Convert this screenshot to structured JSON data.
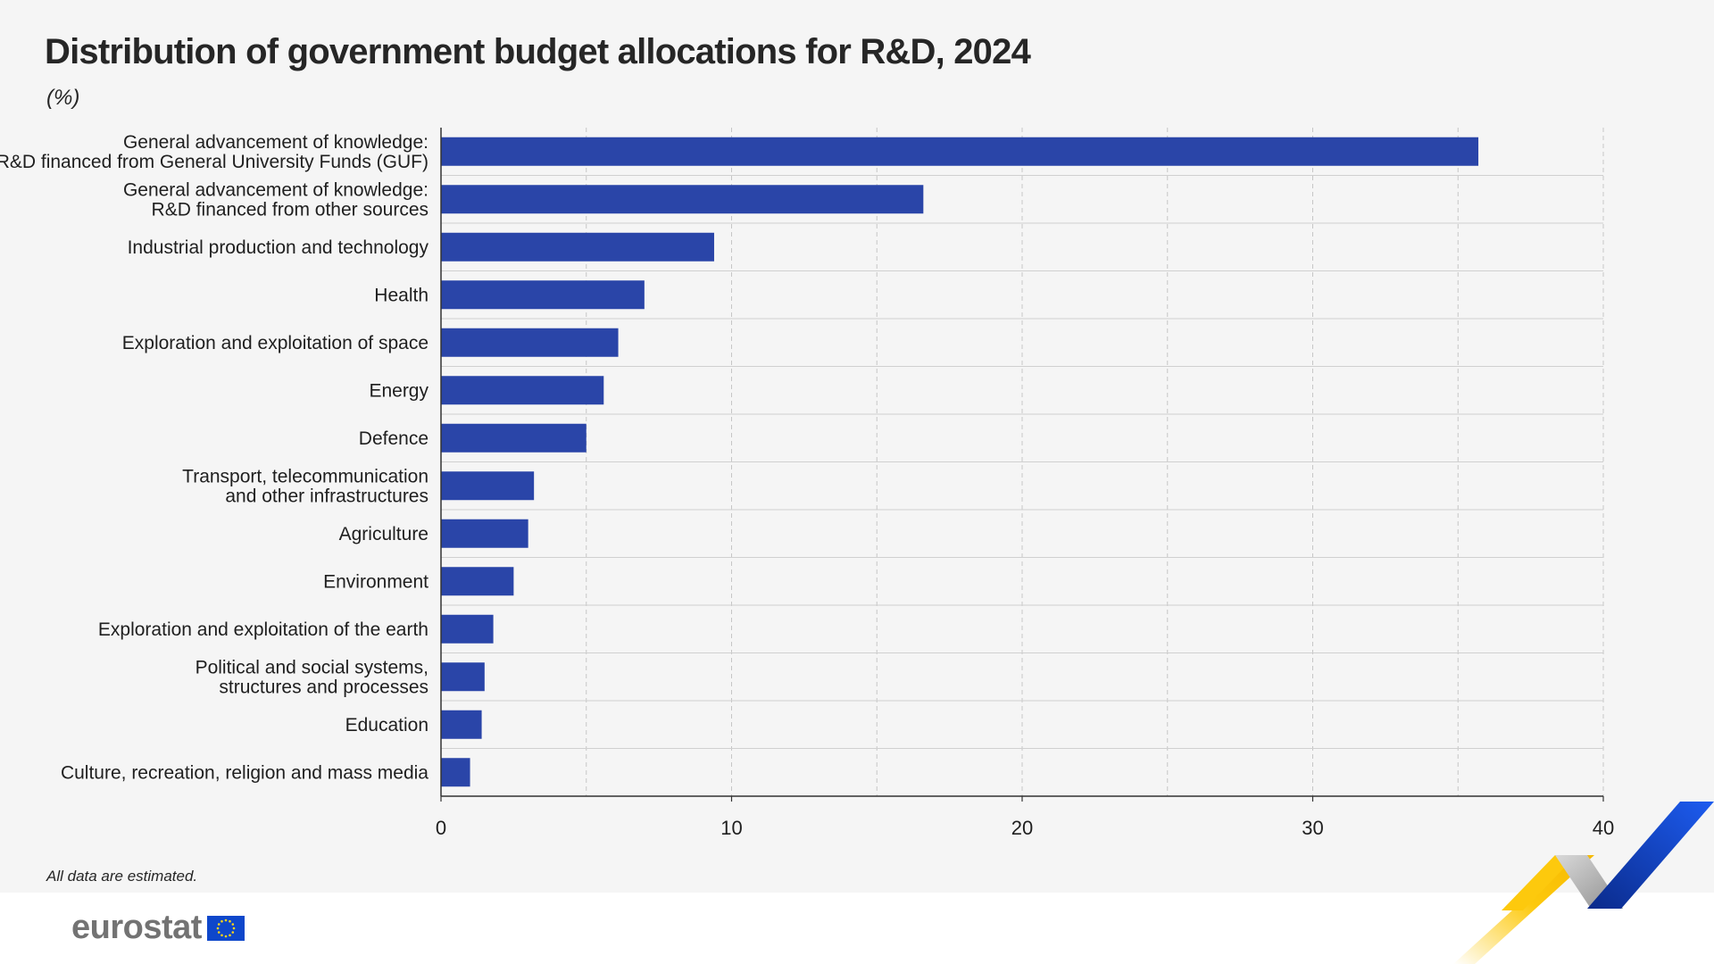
{
  "header": {
    "title": "Distribution of government budget allocations for R&D, 2024",
    "subtitle": "(%)"
  },
  "note": "All data are estimated.",
  "brand": {
    "name": "eurostat",
    "colors": {
      "bar": "#2a45a8",
      "flag": "#0e47cb",
      "flag_stars": "#ffd617",
      "yellow": "#fdc90d",
      "grey": "#b3b3b3",
      "blue": "#1446d0"
    }
  },
  "chart_data": {
    "type": "bar",
    "orientation": "horizontal",
    "title": "Distribution of government budget allocations for R&D, 2024",
    "subtitle": "(%)",
    "categories": [
      [
        "General advancement of knowledge:",
        "R&D financed from General University Funds (GUF)"
      ],
      [
        "General advancement of knowledge:",
        "R&D financed from other sources"
      ],
      [
        "Industrial production and technology"
      ],
      [
        "Health"
      ],
      [
        "Exploration and exploitation of space"
      ],
      [
        "Energy"
      ],
      [
        "Defence"
      ],
      [
        "Transport, telecommunication",
        "and other infrastructures"
      ],
      [
        "Agriculture"
      ],
      [
        "Environment"
      ],
      [
        "Exploration and exploitation of the earth"
      ],
      [
        "Political and social systems,",
        "structures and processes"
      ],
      [
        "Education"
      ],
      [
        "Culture, recreation, religion and mass media"
      ]
    ],
    "values": [
      35.7,
      16.6,
      9.4,
      7.0,
      6.1,
      5.6,
      5.0,
      3.2,
      3.0,
      2.5,
      1.8,
      1.5,
      1.4,
      1.0
    ],
    "xlim": [
      0,
      40
    ],
    "xticks": [
      "0",
      "10",
      "20",
      "30",
      "40"
    ],
    "grid": "vertical dashed",
    "legend": "none"
  }
}
